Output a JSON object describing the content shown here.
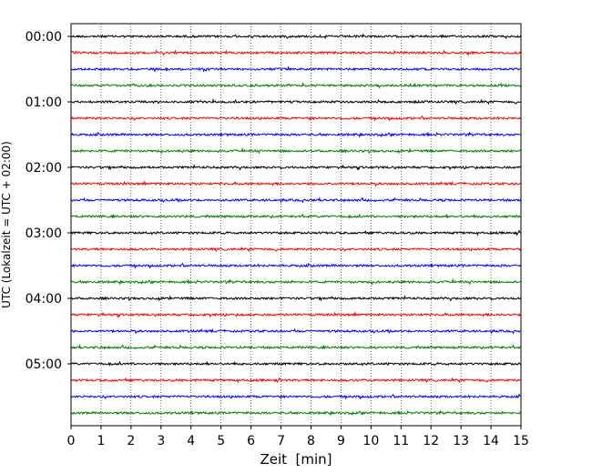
{
  "chart_data": {
    "type": "line",
    "title": "",
    "xlabel": "Zeit  [min]",
    "ylabel": "UTC (Lokalzeit = UTC + 02:00)",
    "xlim": [
      0,
      15
    ],
    "x_ticks": [
      "0",
      "1",
      "2",
      "3",
      "4",
      "5",
      "6",
      "7",
      "8",
      "9",
      "10",
      "11",
      "12",
      "13",
      "14",
      "15"
    ],
    "y_ticks": [
      "00:00",
      "01:00",
      "02:00",
      "03:00",
      "04:00",
      "05:00"
    ],
    "ylim_hours": [
      0,
      6
    ],
    "trace_interval_min": 15,
    "trace_color_cycle": [
      "#000000",
      "#ff0000",
      "#0000ff",
      "#008000"
    ],
    "grid": "vertical dotted lines at each minute",
    "series": [
      {
        "start": "00:00"
      },
      {
        "start": "00:15"
      },
      {
        "start": "00:30"
      },
      {
        "start": "00:45"
      },
      {
        "start": "01:00"
      },
      {
        "start": "01:15"
      },
      {
        "start": "01:30"
      },
      {
        "start": "01:45"
      },
      {
        "start": "02:00"
      },
      {
        "start": "02:15"
      },
      {
        "start": "02:30"
      },
      {
        "start": "02:45"
      },
      {
        "start": "03:00"
      },
      {
        "start": "03:15"
      },
      {
        "start": "03:30"
      },
      {
        "start": "03:45"
      },
      {
        "start": "04:00"
      },
      {
        "start": "04:15"
      },
      {
        "start": "04:30"
      },
      {
        "start": "04:45"
      },
      {
        "start": "05:00"
      },
      {
        "start": "05:15"
      },
      {
        "start": "05:30"
      },
      {
        "start": "05:45"
      }
    ]
  }
}
